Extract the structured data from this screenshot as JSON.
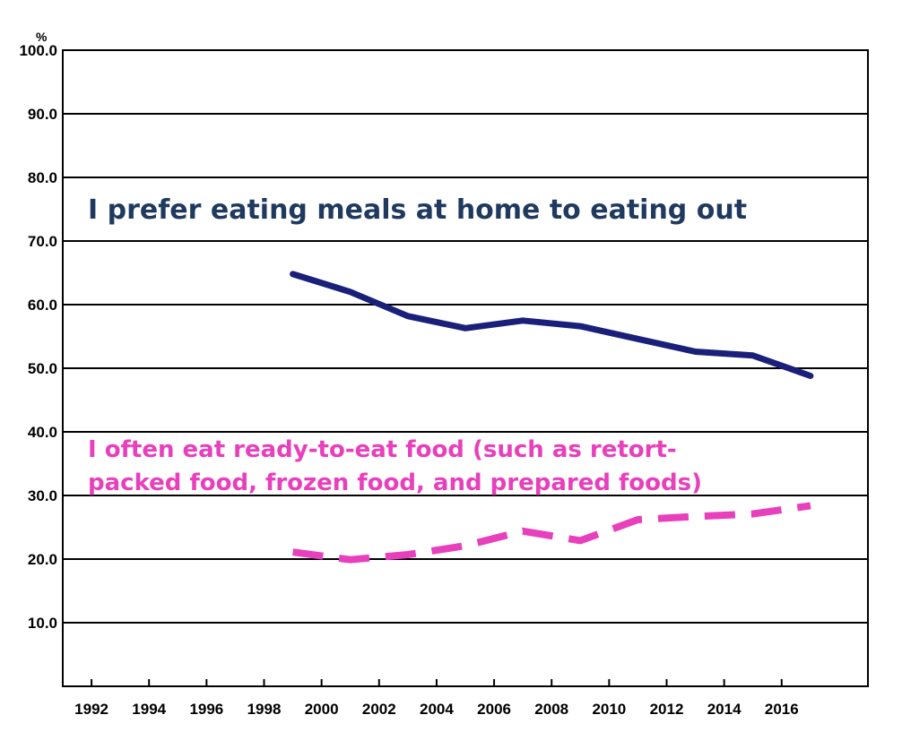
{
  "chart_data": {
    "type": "line",
    "unit_label": "%",
    "x": [
      1999,
      2001,
      2003,
      2005,
      2007,
      2009,
      2011,
      2013,
      2015,
      2017
    ],
    "x_ticks": [
      "1992",
      "1994",
      "1996",
      "1998",
      "2000",
      "2002",
      "2004",
      "2006",
      "2008",
      "2010",
      "2012",
      "2014",
      "2016"
    ],
    "y_ticks": [
      "100.0",
      "90.0",
      "80.0",
      "70.0",
      "60.0",
      "50.0",
      "40.0",
      "30.0",
      "20.0",
      "10.0"
    ],
    "xlim": [
      1991,
      2019
    ],
    "ylim": [
      0,
      100
    ],
    "grid": true,
    "series": [
      {
        "name": "I prefer eating meals at home to eating out",
        "color": "#1a1f7a",
        "style": "solid",
        "values": [
          64.8,
          62.0,
          58.2,
          56.3,
          57.5,
          56.6,
          54.6,
          52.6,
          52.0,
          48.8
        ]
      },
      {
        "name": "I often eat ready-to-eat food (such as retort-packed food, frozen food, and prepared foods)",
        "color": "#e83fbd",
        "style": "dashed",
        "values": [
          21.1,
          19.9,
          20.7,
          22.1,
          24.4,
          22.9,
          26.2,
          26.7,
          27.1,
          28.4
        ]
      }
    ],
    "annotations": [
      {
        "lines": [
          "I prefer eating meals at home to eating out"
        ],
        "color": "#1f3a5e"
      },
      {
        "lines": [
          "I often eat ready-to-eat food (such as retort-",
          "packed food, frozen food, and prepared foods)"
        ],
        "color": "#e83fbd"
      }
    ]
  }
}
